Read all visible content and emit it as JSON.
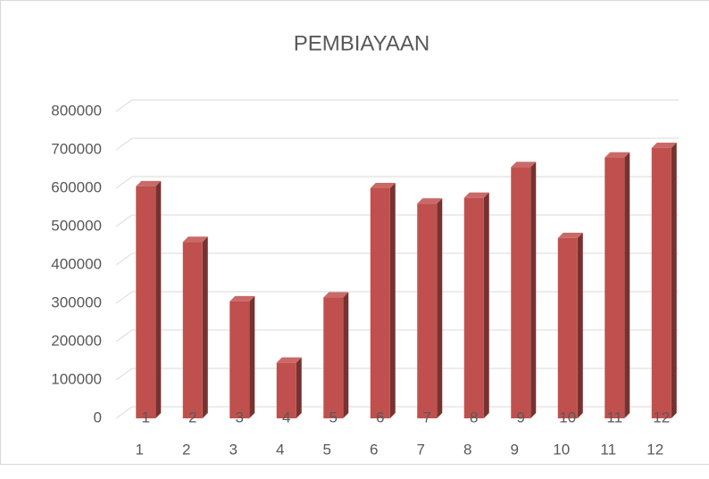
{
  "chart_data": {
    "type": "bar3d",
    "title": "PEMBIAYAAN",
    "categories": [
      "1",
      "2",
      "3",
      "4",
      "5",
      "6",
      "7",
      "8",
      "9",
      "10",
      "11",
      "12"
    ],
    "values": [
      605000,
      460000,
      305000,
      145000,
      315000,
      600000,
      560000,
      575000,
      655000,
      470000,
      680000,
      705000
    ],
    "color": "#c0504d",
    "ylim": [
      0,
      800000
    ],
    "yticks": [
      0,
      100000,
      200000,
      300000,
      400000,
      500000,
      600000,
      700000,
      800000
    ],
    "grid": true
  }
}
